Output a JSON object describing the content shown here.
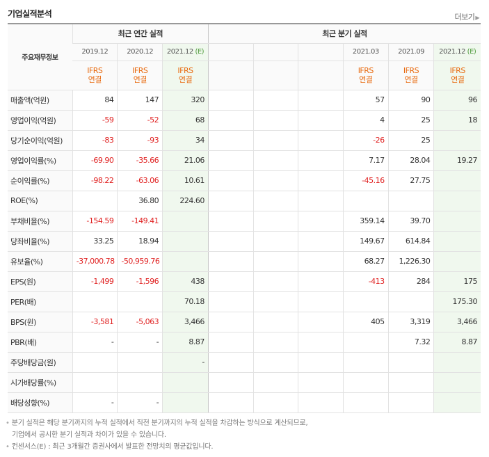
{
  "title": "기업실적분석",
  "more_label": "더보기",
  "header": {
    "corner": "주요재무정보",
    "annual_group": "최근 연간 실적",
    "quarter_group": "최근 분기 실적",
    "annual_periods": [
      "2019.12",
      "2020.12",
      "2021.12"
    ],
    "quarter_periods": [
      "2021.03",
      "2021.09",
      "2021.12"
    ],
    "est_mark": "(E)",
    "ifrs": "IFRS",
    "consolidated": "연결"
  },
  "rows": [
    {
      "label": "매출액(억원)",
      "a": [
        "84",
        "147",
        "320"
      ],
      "q": [
        "",
        "",
        "",
        "57",
        "90",
        "96"
      ]
    },
    {
      "label": "영업이익(억원)",
      "a": [
        "-59",
        "-52",
        "68"
      ],
      "q": [
        "",
        "",
        "",
        "4",
        "25",
        "18"
      ]
    },
    {
      "label": "당기순이익(억원)",
      "a": [
        "-83",
        "-93",
        "34"
      ],
      "q": [
        "",
        "",
        "",
        "-26",
        "25",
        ""
      ]
    },
    {
      "label": "영업이익률(%)",
      "a": [
        "-69.90",
        "-35.66",
        "21.06"
      ],
      "q": [
        "",
        "",
        "",
        "7.17",
        "28.04",
        "19.27"
      ]
    },
    {
      "label": "순이익률(%)",
      "a": [
        "-98.22",
        "-63.06",
        "10.61"
      ],
      "q": [
        "",
        "",
        "",
        "-45.16",
        "27.75",
        ""
      ]
    },
    {
      "label": "ROE(%)",
      "a": [
        "",
        "36.80",
        "224.60"
      ],
      "q": [
        "",
        "",
        "",
        "",
        "",
        ""
      ]
    },
    {
      "label": "부채비율(%)",
      "a": [
        "-154.59",
        "-149.41",
        ""
      ],
      "q": [
        "",
        "",
        "",
        "359.14",
        "39.70",
        ""
      ]
    },
    {
      "label": "당좌비율(%)",
      "a": [
        "33.25",
        "18.94",
        ""
      ],
      "q": [
        "",
        "",
        "",
        "149.67",
        "614.84",
        ""
      ]
    },
    {
      "label": "유보율(%)",
      "a": [
        "-37,000.78",
        "-50,959.76",
        ""
      ],
      "q": [
        "",
        "",
        "",
        "68.27",
        "1,226.30",
        ""
      ]
    },
    {
      "label": "EPS(원)",
      "a": [
        "-1,499",
        "-1,596",
        "438"
      ],
      "q": [
        "",
        "",
        "",
        "-413",
        "284",
        "175"
      ]
    },
    {
      "label": "PER(배)",
      "a": [
        "",
        "",
        "70.18"
      ],
      "q": [
        "",
        "",
        "",
        "",
        "",
        "175.30"
      ]
    },
    {
      "label": "BPS(원)",
      "a": [
        "-3,581",
        "-5,063",
        "3,466"
      ],
      "q": [
        "",
        "",
        "",
        "405",
        "3,319",
        "3,466"
      ]
    },
    {
      "label": "PBR(배)",
      "a": [
        "-",
        "-",
        "8.87"
      ],
      "q": [
        "",
        "",
        "",
        "",
        "7.32",
        "8.87"
      ]
    },
    {
      "label": "주당배당금(원)",
      "a": [
        "",
        "",
        "-"
      ],
      "q": [
        "",
        "",
        "",
        "",
        "",
        ""
      ]
    },
    {
      "label": "시가배당률(%)",
      "a": [
        "",
        "",
        ""
      ],
      "q": [
        "",
        "",
        "",
        "",
        "",
        ""
      ]
    },
    {
      "label": "배당성향(%)",
      "a": [
        "-",
        "-",
        ""
      ],
      "q": [
        "",
        "",
        "",
        "",
        "",
        ""
      ]
    }
  ],
  "group_starts": [
    3,
    6,
    9,
    13
  ],
  "notes": {
    "line1": "분기 실적은 해당 분기까지의 누적 실적에서 직전 분기까지의 누적 실적을 차감하는 방식으로 계산되므로,",
    "line1b": "기업에서 공시한 분기 실적과 차이가 있을 수 있습니다.",
    "line2": "컨센서스(E) : 최근 3개월간 증권사에서 발표한 전망치의 평균값입니다."
  }
}
